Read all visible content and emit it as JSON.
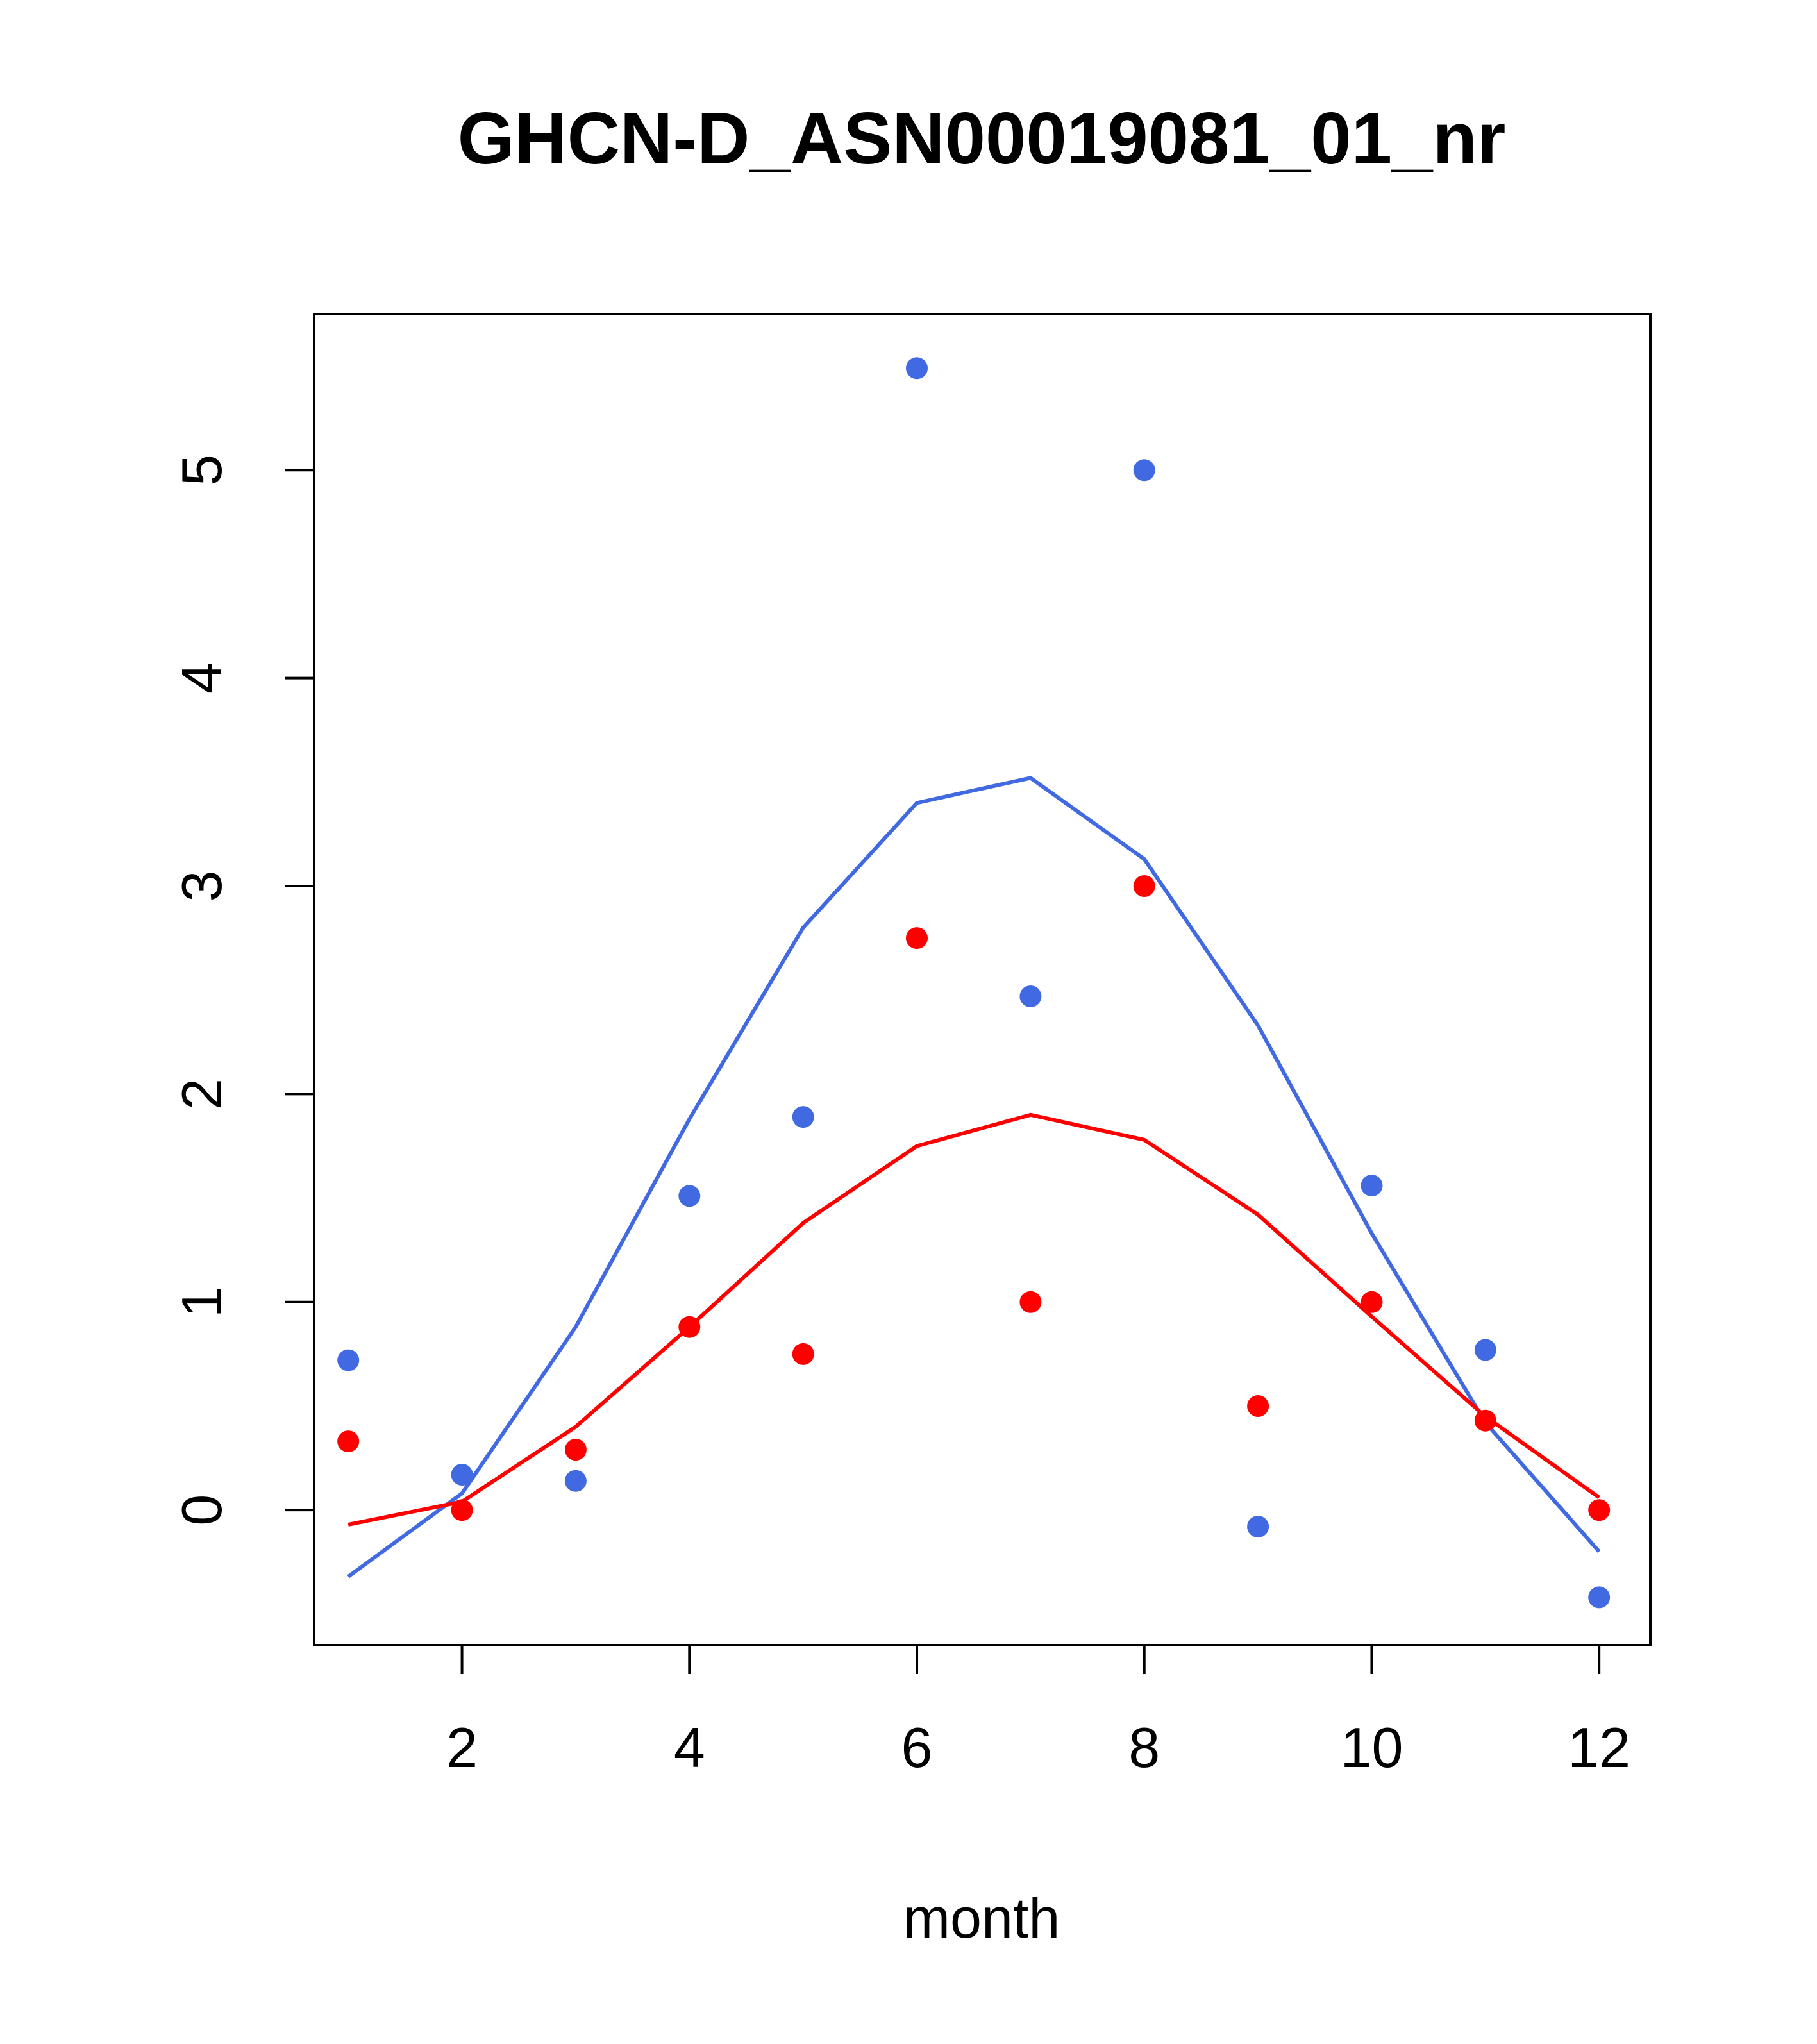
{
  "chart_data": {
    "type": "scatter",
    "title": "GHCN-D_ASN00019081_01_nr",
    "xlabel": "month",
    "ylabel": "",
    "xlim": [
      0.7,
      12.45
    ],
    "ylim": [
      -0.65,
      5.75
    ],
    "x_ticks": [
      2,
      4,
      6,
      8,
      10,
      12
    ],
    "y_ticks": [
      0,
      1,
      2,
      3,
      4,
      5
    ],
    "grid": false,
    "legend": "none",
    "series": [
      {
        "color": "#4169E1",
        "points": {
          "x": [
            1,
            2,
            3,
            4,
            5,
            6,
            7,
            8,
            9,
            10,
            11,
            12
          ],
          "y": [
            0.72,
            0.17,
            0.14,
            1.51,
            1.89,
            5.49,
            2.47,
            5.0,
            -0.08,
            1.56,
            0.77,
            -0.42
          ]
        },
        "line": {
          "x": [
            1,
            2,
            3,
            4,
            5,
            6,
            7,
            8,
            9,
            10,
            11,
            12
          ],
          "y": [
            -0.32,
            0.08,
            0.88,
            1.88,
            2.8,
            3.4,
            3.52,
            3.13,
            2.33,
            1.33,
            0.42,
            -0.2
          ]
        }
      },
      {
        "color": "#FF0000",
        "points": {
          "x": [
            1,
            2,
            3,
            4,
            5,
            6,
            7,
            8,
            9,
            10,
            11,
            12
          ],
          "y": [
            0.33,
            0.0,
            0.29,
            0.88,
            0.75,
            2.75,
            1.0,
            3.0,
            0.5,
            1.0,
            0.43,
            0.0
          ]
        },
        "line": {
          "x": [
            1,
            2,
            3,
            4,
            5,
            6,
            7,
            8,
            9,
            10,
            11,
            12
          ],
          "y": [
            -0.07,
            0.04,
            0.4,
            0.88,
            1.38,
            1.75,
            1.9,
            1.78,
            1.42,
            0.93,
            0.45,
            0.06
          ]
        }
      }
    ]
  }
}
